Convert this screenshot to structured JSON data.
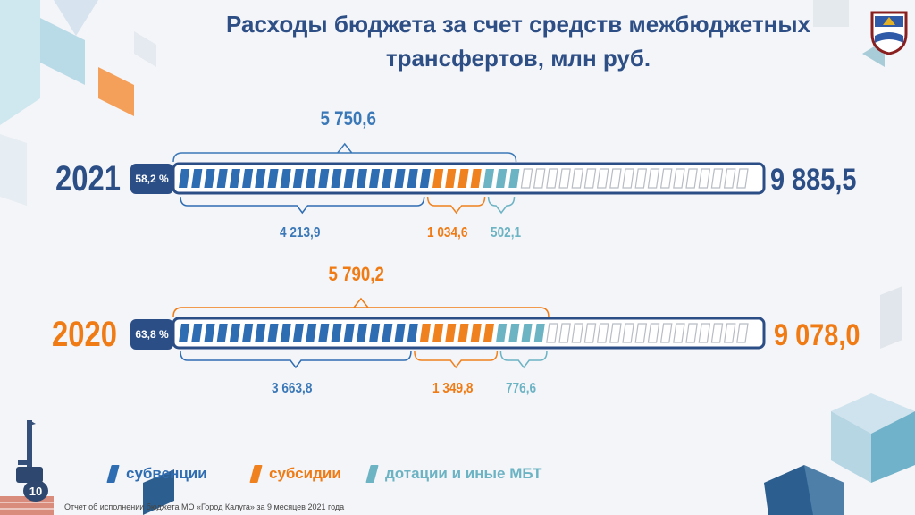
{
  "title": "Расходы бюджета за счет средств межбюджетных трансфертов, млн руб.",
  "page_number": "10",
  "footer": "Отчет об исполнении бюджета МО «Город Калуга» за 9 месяцев 2021 года",
  "colors": {
    "subventions": "#2f6db3",
    "subsidies": "#f0811f",
    "subsidies_label": "#f07b14",
    "dotations": "#6cb3c4",
    "empty": "#ffffff",
    "frame": "#2c4e86",
    "year_2021": "#2c4e86",
    "year_2020": "#f07b14"
  },
  "icons": {
    "emblem": "kaluga-coat-of-arms-icon",
    "monument": "monument-icon"
  },
  "chart_data": {
    "type": "bar",
    "title": "Расходы бюджета за счет средств межбюджетных трансфертов, млн руб.",
    "orientation": "horizontal-stacked-segmented",
    "legend_position": "bottom-left",
    "legend": [
      "субвенции",
      "субсидии",
      "дотации и иные МБТ"
    ],
    "rows": [
      {
        "year": "2021",
        "total": 9885.5,
        "total_label": "9 885,5",
        "transfers_sum": 5750.6,
        "transfers_sum_label": "5 750,6",
        "share_label": "58,2 %",
        "segments": [
          {
            "series": "субвенции",
            "value": 4213.9,
            "label": "4 213,9"
          },
          {
            "series": "субсидии",
            "value": 1034.6,
            "label": "1 034,6"
          },
          {
            "series": "дотации и иные МБТ",
            "value": 502.1,
            "label": "502,1"
          }
        ]
      },
      {
        "year": "2020",
        "total": 9078.0,
        "total_label": "9 078,0",
        "transfers_sum": 5790.2,
        "transfers_sum_label": "5 790,2",
        "share_label": "63,8 %",
        "segments": [
          {
            "series": "субвенции",
            "value": 3663.8,
            "label": "3 663,8"
          },
          {
            "series": "субсидии",
            "value": 1349.8,
            "label": "1 349,8"
          },
          {
            "series": "дотации и иные МБТ",
            "value": 776.6,
            "label": "776,6"
          }
        ]
      }
    ]
  }
}
